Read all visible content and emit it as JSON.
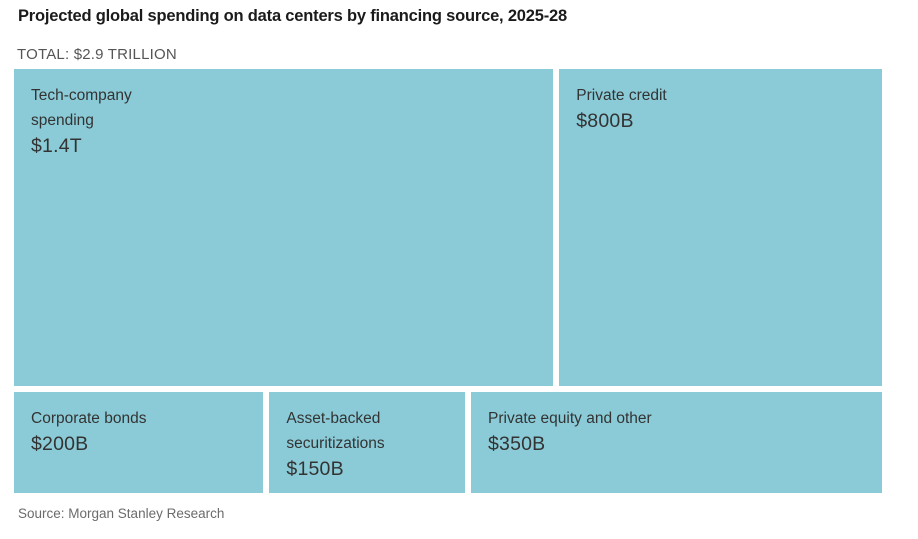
{
  "header": {
    "title": "Projected global spending on data centers by financing source, 2025-28",
    "total_label": "TOTAL: $2.9 TRILLION"
  },
  "footer": {
    "source": "Source: Morgan Stanley Research"
  },
  "colors": {
    "block_fill": "#8acbd7",
    "title_color": "#1b1b1b",
    "total_color": "#555555",
    "block_text": "#333333",
    "source_color": "#6b6b6b"
  },
  "chart_data": {
    "type": "treemap",
    "title": "Projected global spending on data centers by financing source, 2025-28",
    "total_label": "TOTAL: $2.9 TRILLION",
    "total_value_trillions": 2.9,
    "unit": "USD",
    "source": "Source: Morgan Stanley Research",
    "layout_rows": [
      [
        0,
        1
      ],
      [
        2,
        3,
        4
      ]
    ],
    "nodes": [
      {
        "label": "Tech-company spending",
        "label_lines": [
          "Tech-company",
          "spending"
        ],
        "value_label": "$1.4T",
        "value_billions": 1400
      },
      {
        "label": "Private credit",
        "label_lines": [
          "Private credit"
        ],
        "value_label": "$800B",
        "value_billions": 800
      },
      {
        "label": "Corporate bonds",
        "label_lines": [
          "Corporate bonds"
        ],
        "value_label": "$200B",
        "value_billions": 200
      },
      {
        "label": "Asset-backed securitizations",
        "label_lines": [
          "Asset-backed",
          "securitizations"
        ],
        "value_label": "$150B",
        "value_billions": 150
      },
      {
        "label": "Private equity and other",
        "label_lines": [
          "Private equity and other"
        ],
        "value_label": "$350B",
        "value_billions": 350
      }
    ]
  }
}
